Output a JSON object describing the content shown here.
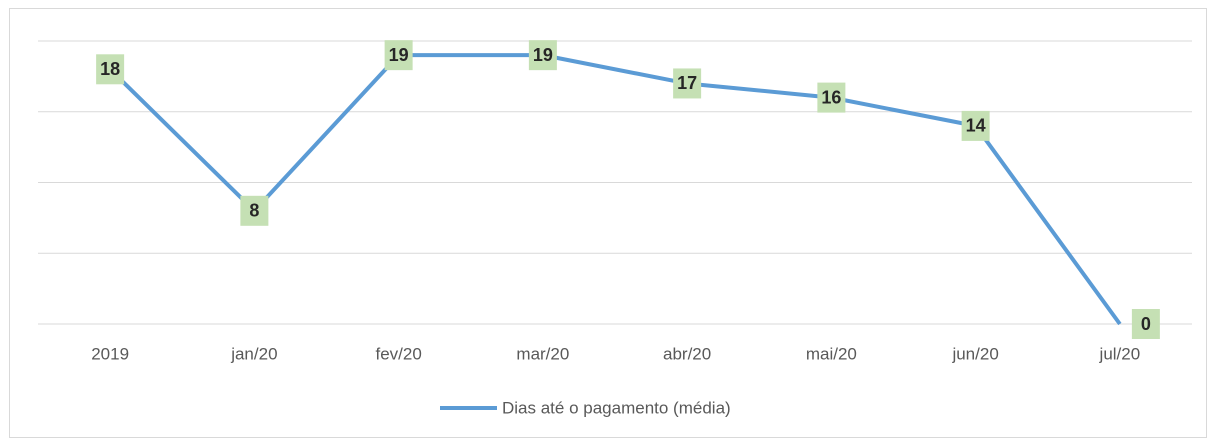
{
  "chart_data": {
    "type": "line",
    "categories": [
      "2019",
      "jan/20",
      "fev/20",
      "mar/20",
      "abr/20",
      "mai/20",
      "jun/20",
      "jul/20"
    ],
    "series": [
      {
        "name": "Dias até o pagamento (média)",
        "color": "#5b9bd5",
        "values": [
          18,
          8,
          19,
          19,
          17,
          16,
          14,
          0
        ]
      }
    ],
    "ylim": [
      0,
      20
    ],
    "yticks": [
      0,
      5,
      10,
      15,
      20
    ],
    "grid": true,
    "legend": "bottom",
    "label_color": "#c5e0b4"
  }
}
